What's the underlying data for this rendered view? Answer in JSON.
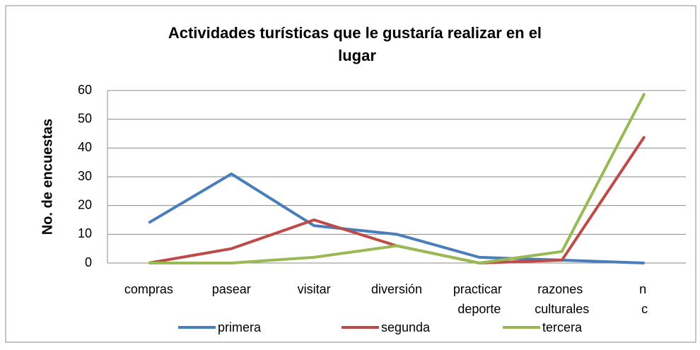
{
  "chart_data": {
    "type": "line",
    "title": "Actividades turísticas que le gustaría realizar en el lugar",
    "y_label": "No. de encuestas",
    "categories": [
      "compras",
      "pasear",
      "visitar",
      "diversión",
      "practicar deporte",
      "razones culturales",
      "n c"
    ],
    "series": [
      {
        "name": "primera",
        "color": "#4a7ebb",
        "values": [
          14,
          31,
          13,
          10,
          2,
          1,
          0
        ]
      },
      {
        "name": "segunda",
        "color": "#be4b48",
        "values": [
          0,
          5,
          15,
          6,
          0,
          1,
          44
        ]
      },
      {
        "name": "tercera",
        "color": "#98b954",
        "values": [
          0,
          0,
          2,
          6,
          0,
          4,
          59
        ]
      }
    ],
    "ylim": [
      0,
      60
    ],
    "yticks": [
      0,
      10,
      20,
      30,
      40,
      50,
      60
    ],
    "grid": true,
    "legend": "bottom"
  }
}
